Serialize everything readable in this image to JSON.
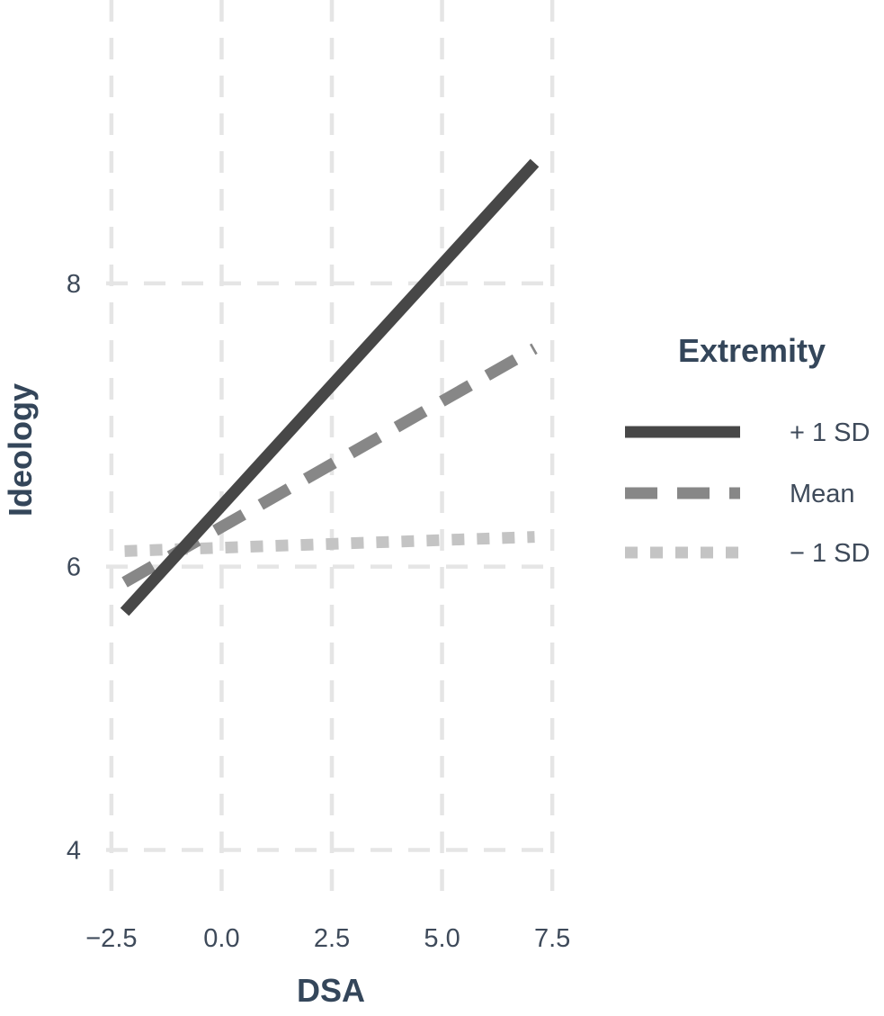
{
  "chart_data": {
    "type": "line",
    "xlabel": "DSA",
    "ylabel": "Ideology",
    "xlim": [
      -2.62,
      7.62
    ],
    "ylim": [
      3.66,
      10.0
    ],
    "x_ticks": [
      -2.5,
      0.0,
      2.5,
      5.0,
      7.5
    ],
    "x_tick_labels": [
      "−2.5",
      "0.0",
      "2.5",
      "5.0",
      "7.5"
    ],
    "y_ticks": [
      4,
      6,
      8
    ],
    "y_tick_labels": [
      "4",
      "6",
      "8"
    ],
    "grid": true,
    "grid_style": "dashed",
    "legend": {
      "title": "Extremity",
      "placement": "right"
    },
    "series": [
      {
        "name": "+ 1 SD",
        "x": [
          -2.2,
          7.1
        ],
        "y": [
          5.68,
          8.85
        ],
        "color": "#474747",
        "dash": "solid"
      },
      {
        "name": "Mean",
        "x": [
          -2.2,
          7.1
        ],
        "y": [
          5.89,
          7.54
        ],
        "color": "#878787",
        "dash": "dashed"
      },
      {
        "name": "− 1 SD",
        "x": [
          -2.2,
          7.1
        ],
        "y": [
          6.11,
          6.21
        ],
        "color": "#c4c4c4",
        "dash": "dotted"
      }
    ]
  }
}
